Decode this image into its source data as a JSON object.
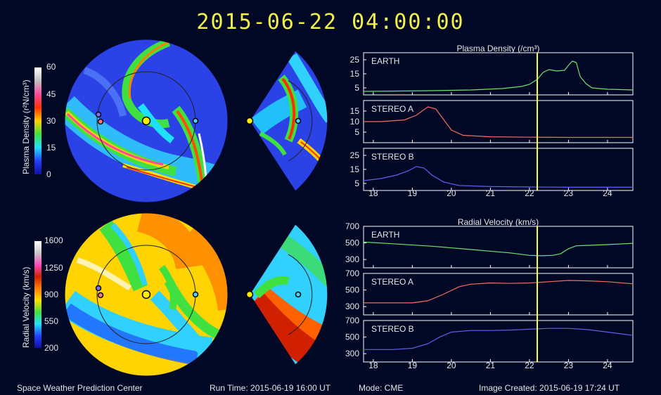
{
  "header": {
    "timestamp": "2015-06-22  04:00:00"
  },
  "density_colorbar": {
    "label": "Plasma Density (r²N/cm³)",
    "ticks": [
      "60",
      "45",
      "30",
      "15",
      "0"
    ],
    "colors": [
      "#ffffff",
      "#c0c0c0",
      "#ff4aa0",
      "#ff3000",
      "#ffd000",
      "#40e040",
      "#20e0ff",
      "#2040ff",
      "#1010a0"
    ]
  },
  "velocity_colorbar": {
    "label": "Radial Velocity (km/s)",
    "ticks": [
      "1600",
      "1250",
      "900",
      "550",
      "200"
    ],
    "colors": [
      "#ffffff",
      "#c8c8c8",
      "#ff4ac0",
      "#d02000",
      "#ff8000",
      "#ffe000",
      "#40e040",
      "#20e0ff",
      "#2040ff",
      "#1010a0"
    ]
  },
  "map_markers": {
    "earth": "#ffee00",
    "stereo_a": "#f07a7a",
    "stereo_b": "#7a70f0",
    "sun": "#ffee00"
  },
  "chart_data": [
    {
      "type": "line",
      "title": "Plasma Density (/cm³)",
      "xticks": [
        "18",
        "19",
        "20",
        "21",
        "22",
        "23",
        "24"
      ],
      "xlim": [
        17.75,
        24.65
      ],
      "marker_x": 22.2,
      "marker_color": "#ffff40",
      "panels": [
        {
          "label": "EARTH",
          "color": "#70e070",
          "yticks": [
            "25",
            "15",
            "5"
          ],
          "ylim": [
            0,
            30
          ],
          "x": [
            17.75,
            18.5,
            19.5,
            20.5,
            21.3,
            21.8,
            22.0,
            22.2,
            22.35,
            22.5,
            22.7,
            22.9,
            23.0,
            23.1,
            23.2,
            23.3,
            23.45,
            23.6,
            23.8,
            24.0,
            24.3,
            24.65
          ],
          "y": [
            2.5,
            2.7,
            3,
            3.5,
            4.5,
            6,
            7.5,
            11,
            16,
            18,
            17,
            17.5,
            21,
            24,
            23,
            13,
            8,
            5,
            4.5,
            4,
            3.8,
            3.5
          ]
        },
        {
          "label": "STEREO A",
          "color": "#f07060",
          "yticks": [
            "15",
            "10",
            "5"
          ],
          "ylim": [
            0,
            20
          ],
          "x": [
            17.75,
            18.2,
            18.8,
            19.1,
            19.4,
            19.6,
            19.8,
            20.0,
            20.3,
            21.0,
            22.0,
            23.0,
            24.0,
            24.65
          ],
          "y": [
            10,
            10,
            10.8,
            13,
            17,
            16,
            11,
            6,
            3.5,
            2.8,
            2.6,
            2.5,
            2.5,
            2.5
          ]
        },
        {
          "label": "STEREO B",
          "color": "#6060f0",
          "yticks": [
            "25",
            "15",
            "5"
          ],
          "ylim": [
            0,
            30
          ],
          "x": [
            17.75,
            18.2,
            18.6,
            18.9,
            19.1,
            19.3,
            19.5,
            19.8,
            20.2,
            21.0,
            22.0,
            23.0,
            24.0,
            24.65
          ],
          "y": [
            7,
            8.5,
            11,
            14,
            17,
            16,
            11,
            6,
            3.5,
            2.8,
            2.5,
            2.3,
            2.3,
            2.3
          ]
        }
      ]
    },
    {
      "type": "line",
      "title": "Radial Velocity (km/s)",
      "xticks": [
        "18",
        "19",
        "20",
        "21",
        "22",
        "23",
        "24"
      ],
      "xlim": [
        17.75,
        24.65
      ],
      "marker_x": 22.2,
      "marker_color": "#ffff40",
      "panels": [
        {
          "label": "EARTH",
          "color": "#70e070",
          "yticks": [
            "700",
            "500",
            "300"
          ],
          "ylim": [
            200,
            700
          ],
          "x": [
            17.75,
            18.5,
            19.5,
            20.5,
            21.5,
            22.0,
            22.3,
            22.6,
            22.8,
            23.0,
            23.2,
            23.5,
            24.0,
            24.65
          ],
          "y": [
            510,
            490,
            460,
            420,
            380,
            350,
            345,
            350,
            370,
            430,
            465,
            470,
            480,
            495
          ]
        },
        {
          "label": "STEREO A",
          "color": "#f07060",
          "yticks": [
            "700",
            "500",
            "300"
          ],
          "ylim": [
            200,
            700
          ],
          "x": [
            17.75,
            18.5,
            19.0,
            19.4,
            19.8,
            20.2,
            20.5,
            21.0,
            21.5,
            22.0,
            22.5,
            23.0,
            23.5,
            24.0,
            24.65
          ],
          "y": [
            345,
            345,
            345,
            370,
            450,
            540,
            570,
            585,
            580,
            585,
            600,
            615,
            610,
            600,
            575
          ]
        },
        {
          "label": "STEREO B",
          "color": "#6060f0",
          "yticks": [
            "700",
            "500",
            "300"
          ],
          "ylim": [
            200,
            700
          ],
          "x": [
            17.75,
            18.5,
            19.0,
            19.4,
            19.7,
            20.0,
            20.5,
            21.0,
            21.5,
            22.0,
            22.5,
            23.0,
            23.5,
            24.0,
            24.65
          ],
          "y": [
            350,
            350,
            365,
            420,
            500,
            560,
            580,
            580,
            585,
            595,
            605,
            605,
            590,
            560,
            520
          ]
        }
      ]
    }
  ],
  "footer": {
    "center": "Space Weather Prediction Center",
    "run_time": "Run Time: 2015-06-19 16:00 UT",
    "mode": "Mode: CME",
    "image_created": "Image Created: 2015-06-19 17:24 UT"
  }
}
